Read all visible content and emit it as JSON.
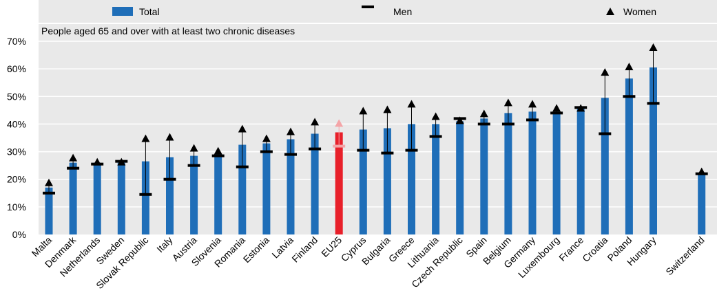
{
  "chart_data": {
    "type": "bar",
    "title": "People aged 65 and over with at least two chronic diseases",
    "legend": {
      "total": "Total",
      "men": "Men",
      "women": "Women",
      "placement": "top"
    },
    "ylim": [
      0,
      70
    ],
    "yticks": [
      0,
      10,
      20,
      30,
      40,
      50,
      60,
      70
    ],
    "ytick_labels": [
      "0%",
      "10%",
      "20%",
      "30%",
      "40%",
      "50%",
      "60%",
      "70%"
    ],
    "xlabel": "",
    "ylabel": "",
    "categories": [
      "Malta",
      "Denmark",
      "Netherlands",
      "Sweden",
      "Slovak Republic",
      "Italy",
      "Austria",
      "Slovenia",
      "Romania",
      "Estonia",
      "Latvia",
      "Finland",
      "EU25",
      "Cyprus",
      "Bulgaria",
      "Greece",
      "Lithuania",
      "Czech Republic",
      "Spain",
      "Belgium",
      "Germany",
      "Luxembourg",
      "France",
      "Croatia",
      "Poland",
      "Hungary",
      "",
      "Switzerland"
    ],
    "series": [
      {
        "name": "Total",
        "values": [
          17,
          26,
          26,
          26,
          26.5,
          28,
          28.5,
          29,
          32.5,
          33,
          34.5,
          36.5,
          37,
          38,
          38.5,
          40,
          40,
          41,
          42,
          44,
          44.5,
          44.5,
          46,
          49.5,
          56.5,
          60.5,
          null,
          22
        ]
      },
      {
        "name": "Men",
        "values": [
          15,
          24,
          25.5,
          26.5,
          14.5,
          20,
          25,
          28.5,
          24.5,
          30,
          29,
          31,
          32,
          30.5,
          29.5,
          30.5,
          35.5,
          42,
          40,
          40,
          41.5,
          44,
          46,
          36.5,
          50,
          47.5,
          null,
          22
        ]
      },
      {
        "name": "Women",
        "values": [
          18.5,
          27.5,
          26,
          26,
          34.5,
          35,
          31,
          30,
          38,
          34.5,
          37,
          40.5,
          40,
          44.5,
          45,
          47,
          42.5,
          41,
          43.5,
          47.5,
          47,
          45.5,
          45.5,
          58.5,
          60.5,
          67.5,
          null,
          22.5
        ]
      }
    ],
    "highlight": {
      "category": "EU25",
      "total_color": "#E8202A",
      "marker_color": "#F4A5A8"
    },
    "colors": {
      "total": "#1F6EB8",
      "marker": "#000000",
      "panel": "#E9E9E9",
      "grid": "#FFFFFF"
    }
  }
}
